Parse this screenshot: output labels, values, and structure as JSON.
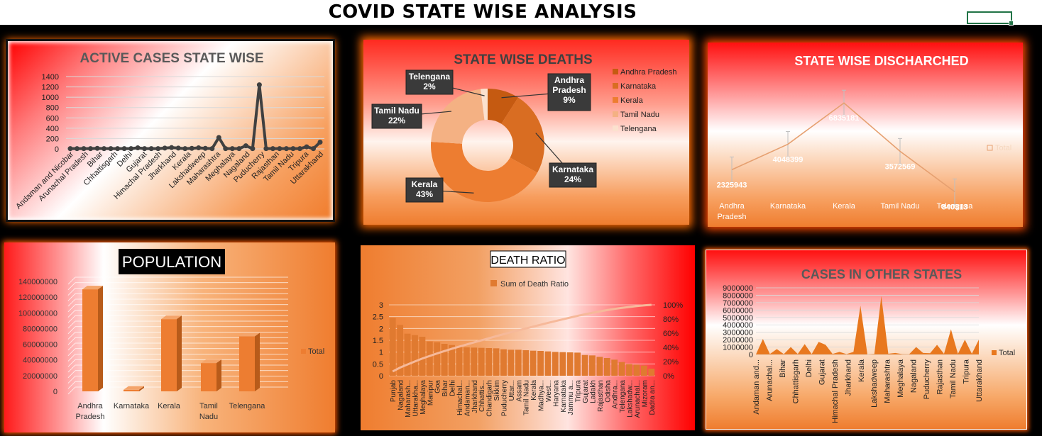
{
  "page": {
    "title": "COVID STATE WISE ANALYSIS"
  },
  "chart_data": [
    {
      "type": "line",
      "title": "ACTIVE CASES STATE WISE",
      "categories": [
        "Andaman and Nicobar",
        "Arunachal Pradesh",
        "Bihar",
        "Chhattisgarh",
        "Delhi",
        "Gujarat",
        "Himachal Pradesh",
        "Jharkhand",
        "Kerala",
        "Lakshadweep",
        "Maharashtra",
        "Meghalaya",
        "Nagaland",
        "Puducherry",
        "Rajasthan",
        "Tamil Nadu",
        "Tripura",
        "Uttarakhand"
      ],
      "all_points": [
        5,
        5,
        5,
        5,
        10,
        5,
        5,
        5,
        5,
        5,
        20,
        5,
        5,
        5,
        15,
        25,
        15,
        5,
        10,
        20,
        10,
        5,
        220,
        5,
        5,
        5,
        60,
        5,
        1240,
        5,
        5,
        5,
        5,
        5,
        5,
        40,
        5,
        130
      ],
      "ylim": [
        0,
        1400
      ],
      "yticks": [
        0,
        200,
        400,
        600,
        800,
        1000,
        1200,
        1400
      ],
      "grid": true,
      "legend": "none"
    },
    {
      "type": "pie",
      "title": "STATE WISE DEATHS",
      "categories": [
        "Andhra Pradesh",
        "Karnataka",
        "Kerala",
        "Tamil Nadu",
        "Telengana"
      ],
      "values": [
        9,
        24,
        43,
        22,
        2
      ],
      "data_labels": [
        "9%",
        "24%",
        "43%",
        "22%",
        "2%"
      ],
      "colors": [
        "#c55a11",
        "#d96d22",
        "#ed7d31",
        "#f4b183",
        "#fbe1ce"
      ],
      "legend": "right"
    },
    {
      "type": "line",
      "title": "STATE WISE DISCHARCHED",
      "categories": [
        "Andhra Pradesh",
        "Karnataka",
        "Kerala",
        "Tamil Nadu",
        "Telengana"
      ],
      "values": [
        2325943,
        4048399,
        6835181,
        3572569,
        840313
      ],
      "data_labels": [
        "2325943",
        "4048399",
        "6835181",
        "3572569",
        "840313"
      ],
      "series": [
        {
          "name": "Total",
          "values": [
            2325943,
            4048399,
            6835181,
            3572569,
            840313
          ]
        }
      ],
      "error_bars": true,
      "ylim": [
        0,
        9000000
      ],
      "legend": "right"
    },
    {
      "type": "bar",
      "title": "POPULATION",
      "categories": [
        "Andhra Pradesh",
        "Karnataka",
        "Kerala",
        "Tamil Nadu",
        "Telengana"
      ],
      "values": [
        130000000,
        2000000,
        92000000,
        36000000,
        70000000
      ],
      "series": [
        {
          "name": "Total",
          "values": [
            130000000,
            2000000,
            92000000,
            36000000,
            70000000
          ]
        }
      ],
      "ylim": [
        0,
        140000000
      ],
      "yticks": [
        "0",
        "20000000",
        "40000000",
        "60000000",
        "80000000",
        "100000000",
        "120000000",
        "140000000"
      ],
      "grid": true,
      "legend": "right"
    },
    {
      "type": "bar",
      "title": "DEATH RATIO",
      "categories": [
        "Punjab",
        "Nagaland",
        "Maharash...",
        "Uttarakha...",
        "Meghalaya",
        "Manipur",
        "Goa",
        "Bihar",
        "Delhi",
        "Himachal...",
        "Andaman...",
        "Jharkhand",
        "Chhattis...",
        "Chandigarh",
        "Sikkim",
        "Puducherry",
        "Uttar...",
        "Assam",
        "Tamil Nadu",
        "Kerala",
        "Madhya...",
        "West...",
        "Haryana",
        "Karnataka",
        "Jammu a...",
        "Tripura",
        "Gujarat",
        "Ladakh",
        "Rajasthan",
        "Odisha",
        "Andhra...",
        "Telengana",
        "Lakshadw...",
        "Arunachal...",
        "Mizoram",
        "Dadra an..."
      ],
      "values": [
        2.45,
        2.15,
        1.78,
        1.72,
        1.65,
        1.45,
        1.42,
        1.35,
        1.3,
        1.22,
        1.2,
        1.19,
        1.18,
        1.17,
        1.16,
        1.12,
        1.1,
        1.1,
        1.08,
        1.06,
        1.05,
        1.03,
        1.01,
        1.0,
        0.99,
        0.98,
        0.88,
        0.86,
        0.8,
        0.75,
        0.68,
        0.58,
        0.5,
        0.47,
        0.43,
        0.3
      ],
      "series": [
        {
          "name": "Sum of Death Ratio"
        }
      ],
      "ylim": [
        0,
        3
      ],
      "yticks": [
        "0",
        "0.5",
        "1",
        "1.5",
        "2",
        "2.5",
        "3"
      ],
      "y2ticks": [
        "0%",
        "20%",
        "40%",
        "60%",
        "80%",
        "100%"
      ],
      "pareto": true,
      "grid": true,
      "legend": "top"
    },
    {
      "type": "area",
      "title": "CASES IN OTHER STATES",
      "categories": [
        "Andaman and...",
        "Arunachal...",
        "Bihar",
        "Chhattisgarh",
        "Delhi",
        "Gujarat",
        "Himachal Pradesh",
        "Jharkhand",
        "Kerala",
        "Lakshadweep",
        "Maharashtra",
        "Meghalaya",
        "Nagaland",
        "Puducherry",
        "Rajasthan",
        "Tamil Nadu",
        "Tripura",
        "Uttarakhand"
      ],
      "all_points": [
        7000,
        2100000,
        60000,
        730000,
        50000,
        1000000,
        60000,
        1400000,
        50000,
        1700000,
        1300000,
        70000,
        350000,
        50000,
        350000,
        6600000,
        10000,
        70000,
        7900000,
        100000,
        200000,
        50000,
        30000,
        1000000,
        200000,
        170000,
        1300000,
        80000,
        3400000,
        80000,
        2000000,
        90000,
        2000000
      ],
      "series": [
        {
          "name": "Total"
        }
      ],
      "ylim": [
        0,
        9000000
      ],
      "yticks": [
        "0",
        "1000000",
        "2000000",
        "3000000",
        "4000000",
        "5000000",
        "6000000",
        "7000000",
        "8000000",
        "9000000"
      ],
      "grid": true,
      "legend": "right"
    }
  ]
}
